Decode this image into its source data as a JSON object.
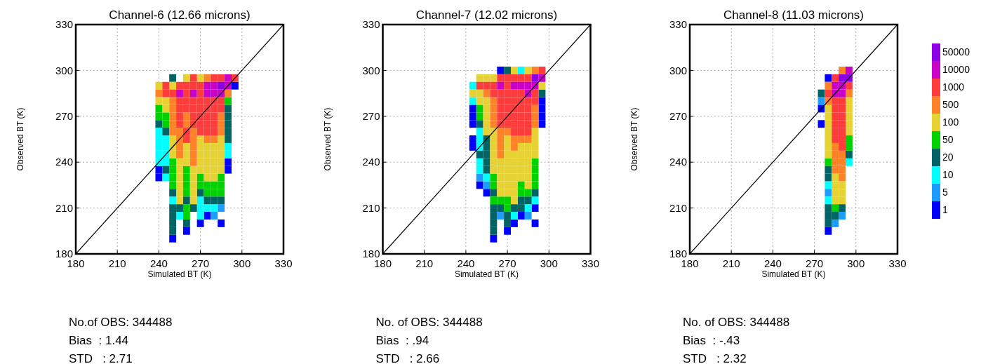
{
  "chart_data": [
    {
      "type": "scatter",
      "title": "Channel-6 (12.66 microns)",
      "xlabel": "Simulated BT (K)",
      "ylabel": "Observed BT (K)",
      "xlim": [
        180,
        330
      ],
      "ylim": [
        180,
        330
      ],
      "xticks": [
        180,
        210,
        240,
        270,
        300,
        330
      ],
      "yticks": [
        180,
        210,
        240,
        270,
        300,
        330
      ],
      "grid": true,
      "annotations": [
        "No.of OBS: 344488",
        "Bias  : 1.44",
        "STD   : 2.71"
      ],
      "series": [
        {
          "marker": "square",
          "color": "#0000ff",
          "x": [
            295,
            290,
            290,
            240,
            240,
            275,
            270,
            285,
            260,
            250
          ],
          "values": [
            290,
            240,
            235,
            235,
            230,
            205,
            200,
            200,
            195,
            190
          ]
        },
        {
          "marker": "square",
          "color": "#1e9bff",
          "x": [
            285,
            280
          ],
          "values": [
            210,
            205
          ]
        },
        {
          "marker": "square",
          "color": "#00ffff",
          "x": [
            240,
            240,
            245,
            240,
            245,
            290,
            240,
            245,
            290,
            240,
            245,
            245,
            250,
            270,
            270,
            275,
            280,
            255,
            270
          ],
          "values": [
            260,
            255,
            255,
            250,
            250,
            250,
            245,
            245,
            245,
            240,
            240,
            230,
            215,
            215,
            210,
            210,
            210,
            205,
            205
          ]
        },
        {
          "marker": "square",
          "color": "#006464",
          "x": [
            250,
            290,
            290,
            240,
            290,
            245,
            290,
            290,
            245,
            250,
            270,
            260,
            275,
            280,
            285,
            250,
            255,
            265,
            250,
            250,
            260,
            250
          ],
          "values": [
            295,
            275,
            270,
            265,
            265,
            260,
            260,
            255,
            235,
            220,
            220,
            215,
            215,
            215,
            215,
            210,
            210,
            210,
            205,
            200,
            200,
            195
          ]
        },
        {
          "marker": "square",
          "color": "#00d200",
          "x": [
            290,
            240,
            240,
            245,
            245,
            250,
            250,
            260,
            250,
            260,
            270,
            285,
            250,
            260,
            270,
            275,
            280,
            285,
            260,
            275,
            280,
            285,
            260,
            260
          ],
          "values": [
            280,
            275,
            270,
            270,
            265,
            240,
            235,
            235,
            230,
            230,
            230,
            230,
            225,
            225,
            225,
            225,
            225,
            225,
            220,
            220,
            220,
            220,
            210,
            205
          ]
        },
        {
          "marker": "square",
          "color": "#e6d232",
          "x": [
            260,
            270,
            240,
            250,
            240,
            245,
            245,
            250,
            270,
            285,
            250,
            260,
            270,
            275,
            280,
            285,
            250,
            260,
            270,
            275,
            280,
            285,
            255,
            260,
            270,
            275,
            280,
            285,
            255,
            265,
            270,
            275,
            280,
            285,
            255,
            265,
            275,
            280,
            255,
            265,
            255,
            265,
            255,
            265
          ],
          "values": [
            295,
            295,
            290,
            290,
            280,
            280,
            275,
            255,
            255,
            255,
            250,
            250,
            250,
            250,
            250,
            250,
            245,
            245,
            245,
            245,
            245,
            245,
            240,
            240,
            240,
            240,
            240,
            240,
            235,
            235,
            235,
            235,
            235,
            235,
            230,
            230,
            230,
            230,
            225,
            225,
            220,
            220,
            215,
            215
          ]
        },
        {
          "marker": "square",
          "color": "#ff8228",
          "x": [
            275,
            240,
            290,
            250,
            250,
            250,
            260,
            285,
            250,
            260,
            285,
            250,
            255,
            265,
            285,
            255,
            265,
            275,
            280,
            255,
            265,
            255,
            265,
            265
          ],
          "values": [
            295,
            285,
            285,
            280,
            275,
            270,
            270,
            270,
            265,
            265,
            265,
            260,
            260,
            260,
            260,
            255,
            255,
            255,
            255,
            250,
            250,
            245,
            245,
            240
          ]
        },
        {
          "marker": "square",
          "color": "#ff3c3c",
          "x": [
            265,
            280,
            285,
            295,
            245,
            255,
            260,
            265,
            270,
            245,
            250,
            260,
            270,
            255,
            260,
            265,
            270,
            275,
            280,
            285,
            255,
            260,
            265,
            270,
            275,
            280,
            285,
            255,
            265,
            270,
            275,
            280,
            255,
            265,
            270,
            275,
            280,
            260,
            270,
            275,
            280,
            260
          ],
          "values": [
            295,
            295,
            295,
            295,
            290,
            290,
            290,
            290,
            290,
            285,
            285,
            285,
            285,
            280,
            280,
            280,
            280,
            280,
            280,
            280,
            275,
            275,
            275,
            275,
            275,
            275,
            275,
            270,
            270,
            270,
            270,
            270,
            265,
            265,
            265,
            265,
            265,
            260,
            260,
            260,
            260,
            255
          ]
        },
        {
          "marker": "square",
          "color": "#c800c8",
          "x": [
            290,
            275,
            280,
            290,
            255,
            265,
            275,
            280,
            285
          ],
          "values": [
            295,
            290,
            290,
            290,
            285,
            285,
            285,
            285,
            285
          ]
        },
        {
          "marker": "square",
          "color": "#8c00e6",
          "x": [
            285
          ],
          "values": [
            290
          ]
        },
        {
          "type": "line",
          "x": [
            180,
            330
          ],
          "values": [
            180,
            330
          ],
          "color": "#000000"
        }
      ]
    },
    {
      "type": "scatter",
      "title": "Channel-7 (12.02 microns)",
      "xlabel": "Simulated BT (K)",
      "ylabel": "Observed BT (K)",
      "xlim": [
        180,
        330
      ],
      "ylim": [
        180,
        330
      ],
      "xticks": [
        180,
        210,
        240,
        270,
        300,
        330
      ],
      "yticks": [
        180,
        210,
        240,
        270,
        300,
        330
      ],
      "grid": true,
      "annotations": [
        "No. of OBS: 344488",
        "Bias  : .94",
        "STD   : 2.66"
      ],
      "series": [
        {
          "marker": "square",
          "color": "#0000ff",
          "x": [
            265,
            295,
            245,
            295,
            245,
            295,
            245,
            295,
            245,
            245,
            250,
            255,
            290,
            280,
            275,
            290,
            270,
            260
          ],
          "values": [
            300,
            280,
            275,
            275,
            270,
            270,
            265,
            265,
            255,
            250,
            225,
            220,
            210,
            205,
            200,
            200,
            195,
            190
          ]
        },
        {
          "marker": "square",
          "color": "#1e9bff",
          "x": [
            250,
            255,
            265,
            285
          ],
          "values": [
            230,
            225,
            205,
            205
          ]
        },
        {
          "marker": "square",
          "color": "#00ffff",
          "x": [
            280,
            245,
            245,
            250,
            250,
            250,
            250,
            250,
            255,
            290,
            285,
            275
          ],
          "values": [
            300,
            290,
            280,
            260,
            255,
            250,
            240,
            235,
            230,
            215,
            210,
            205
          ]
        },
        {
          "marker": "square",
          "color": "#006464",
          "x": [
            270,
            295,
            250,
            255,
            255,
            250,
            255,
            255,
            255,
            260,
            290,
            280,
            285,
            260,
            265,
            275,
            280,
            260,
            270,
            260,
            270,
            260
          ],
          "values": [
            300,
            285,
            265,
            255,
            250,
            245,
            245,
            240,
            235,
            220,
            220,
            215,
            215,
            210,
            210,
            210,
            210,
            205,
            205,
            200,
            200,
            195
          ]
        },
        {
          "marker": "square",
          "color": "#00d200",
          "x": [
            250,
            250,
            290,
            290,
            260,
            290,
            260,
            280,
            290,
            280,
            285,
            260,
            265,
            270,
            270
          ],
          "values": [
            275,
            270,
            240,
            235,
            230,
            230,
            225,
            225,
            225,
            220,
            220,
            215,
            215,
            215,
            210
          ]
        },
        {
          "marker": "square",
          "color": "#e6d232",
          "x": [
            275,
            285,
            250,
            255,
            260,
            295,
            245,
            250,
            250,
            255,
            255,
            255,
            255,
            255,
            260,
            290,
            260,
            270,
            290,
            260,
            270,
            280,
            285,
            290,
            260,
            270,
            275,
            280,
            285,
            290,
            260,
            265,
            270,
            275,
            280,
            285,
            260,
            265,
            270,
            275,
            280,
            285,
            265,
            270,
            275,
            280,
            285,
            265,
            270,
            275,
            285,
            265,
            270,
            275,
            275
          ],
          "values": [
            300,
            300,
            295,
            295,
            295,
            290,
            285,
            285,
            280,
            280,
            275,
            270,
            265,
            260,
            260,
            260,
            255,
            255,
            255,
            250,
            250,
            250,
            250,
            250,
            245,
            245,
            245,
            245,
            245,
            245,
            240,
            240,
            240,
            240,
            240,
            240,
            235,
            235,
            235,
            235,
            235,
            235,
            230,
            230,
            230,
            230,
            230,
            225,
            225,
            225,
            225,
            220,
            220,
            220,
            215
          ]
        },
        {
          "marker": "square",
          "color": "#ff8228",
          "x": [
            290,
            255,
            260,
            260,
            290,
            260,
            290,
            260,
            290,
            265,
            270,
            265,
            275,
            280,
            285,
            265,
            275,
            265
          ],
          "values": [
            300,
            285,
            280,
            275,
            275,
            270,
            270,
            265,
            265,
            260,
            260,
            255,
            255,
            255,
            255,
            250,
            250,
            245
          ]
        },
        {
          "marker": "square",
          "color": "#ff3c3c",
          "x": [
            295,
            265,
            270,
            275,
            280,
            285,
            250,
            255,
            260,
            270,
            260,
            265,
            270,
            275,
            280,
            290,
            265,
            270,
            275,
            280,
            285,
            290,
            265,
            270,
            275,
            280,
            285,
            265,
            270,
            275,
            280,
            285,
            265,
            270,
            275,
            280,
            285,
            275,
            280,
            285
          ],
          "values": [
            300,
            295,
            295,
            295,
            295,
            295,
            290,
            290,
            290,
            290,
            285,
            285,
            285,
            285,
            285,
            285,
            280,
            280,
            280,
            280,
            280,
            280,
            275,
            275,
            275,
            275,
            275,
            270,
            270,
            270,
            270,
            270,
            265,
            265,
            265,
            265,
            265,
            260,
            260,
            260
          ]
        },
        {
          "marker": "square",
          "color": "#c800c8",
          "x": [
            295,
            265,
            275,
            280,
            285,
            290,
            285
          ],
          "values": [
            295,
            290,
            290,
            290,
            290,
            290,
            285
          ]
        },
        {
          "marker": "square",
          "color": "#8c00e6",
          "x": [
            290
          ],
          "values": [
            295
          ]
        },
        {
          "type": "line",
          "x": [
            180,
            330
          ],
          "values": [
            180,
            330
          ],
          "color": "#000000"
        }
      ]
    },
    {
      "type": "scatter",
      "title": "Channel-8 (11.03 microns)",
      "xlabel": "Simulated BT (K)",
      "ylabel": "Observed BT (K)",
      "xlim": [
        180,
        330
      ],
      "ylim": [
        180,
        330
      ],
      "xticks": [
        180,
        210,
        240,
        270,
        300,
        330
      ],
      "yticks": [
        180,
        210,
        240,
        270,
        300,
        330
      ],
      "grid": true,
      "legend": "right",
      "annotations": [
        "No. of OBS: 344488",
        "Bias  : -.43",
        "STD   : 2.32"
      ],
      "series": [
        {
          "name": "1",
          "marker": "square",
          "color": "#0000ff",
          "x": [
            280,
            275,
            275,
            280
          ],
          "values": [
            295,
            275,
            265,
            195
          ]
        },
        {
          "name": "5",
          "marker": "square",
          "color": "#1e9bff",
          "x": [
            275,
            280,
            290,
            285
          ],
          "values": [
            280,
            220,
            205,
            200
          ]
        },
        {
          "name": "10",
          "marker": "square",
          "color": "#00ffff",
          "x": [
            295,
            280,
            280
          ],
          "values": [
            240,
            225,
            215
          ]
        },
        {
          "name": "20",
          "marker": "square",
          "color": "#006464",
          "x": [
            275,
            295,
            280,
            280,
            280,
            290,
            280,
            285,
            280
          ],
          "values": [
            285,
            245,
            235,
            230,
            210,
            210,
            205,
            205,
            200
          ]
        },
        {
          "name": "50",
          "marker": "square",
          "color": "#00d200",
          "x": [
            295,
            295,
            280,
            285
          ],
          "values": [
            255,
            250,
            240,
            210
          ]
        },
        {
          "name": "100",
          "marker": "square",
          "color": "#e6d232",
          "x": [
            295,
            280,
            295,
            280,
            295,
            280,
            295,
            280,
            295,
            280,
            280,
            280,
            285,
            285,
            290,
            285,
            290,
            285,
            290
          ],
          "values": [
            280,
            275,
            275,
            270,
            270,
            265,
            265,
            260,
            260,
            255,
            250,
            245,
            230,
            225,
            225,
            220,
            220,
            215,
            215
          ]
        },
        {
          "name": "500",
          "marker": "square",
          "color": "#ff8228",
          "x": [
            290,
            280,
            295,
            280,
            285,
            285,
            290,
            285,
            290,
            285,
            290,
            290
          ],
          "values": [
            300,
            290,
            285,
            280,
            250,
            245,
            245,
            240,
            240,
            235,
            235,
            230
          ]
        },
        {
          "name": "1000",
          "marker": "square",
          "color": "#ff3c3c",
          "x": [
            285,
            295,
            280,
            285,
            290,
            285,
            290,
            285,
            290,
            285,
            290,
            285,
            290,
            285,
            290,
            290
          ],
          "values": [
            295,
            290,
            285,
            280,
            280,
            275,
            275,
            270,
            270,
            265,
            265,
            260,
            260,
            255,
            255,
            250
          ]
        },
        {
          "name": "10000",
          "marker": "square",
          "color": "#c800c8",
          "x": [
            295,
            285,
            290,
            285,
            290
          ],
          "values": [
            300,
            290,
            290,
            285,
            285
          ]
        },
        {
          "name": "50000",
          "marker": "square",
          "color": "#8c00e6",
          "x": [
            290,
            295
          ],
          "values": [
            295,
            295
          ]
        },
        {
          "type": "line",
          "x": [
            180,
            330
          ],
          "values": [
            180,
            330
          ],
          "color": "#000000"
        }
      ]
    }
  ]
}
